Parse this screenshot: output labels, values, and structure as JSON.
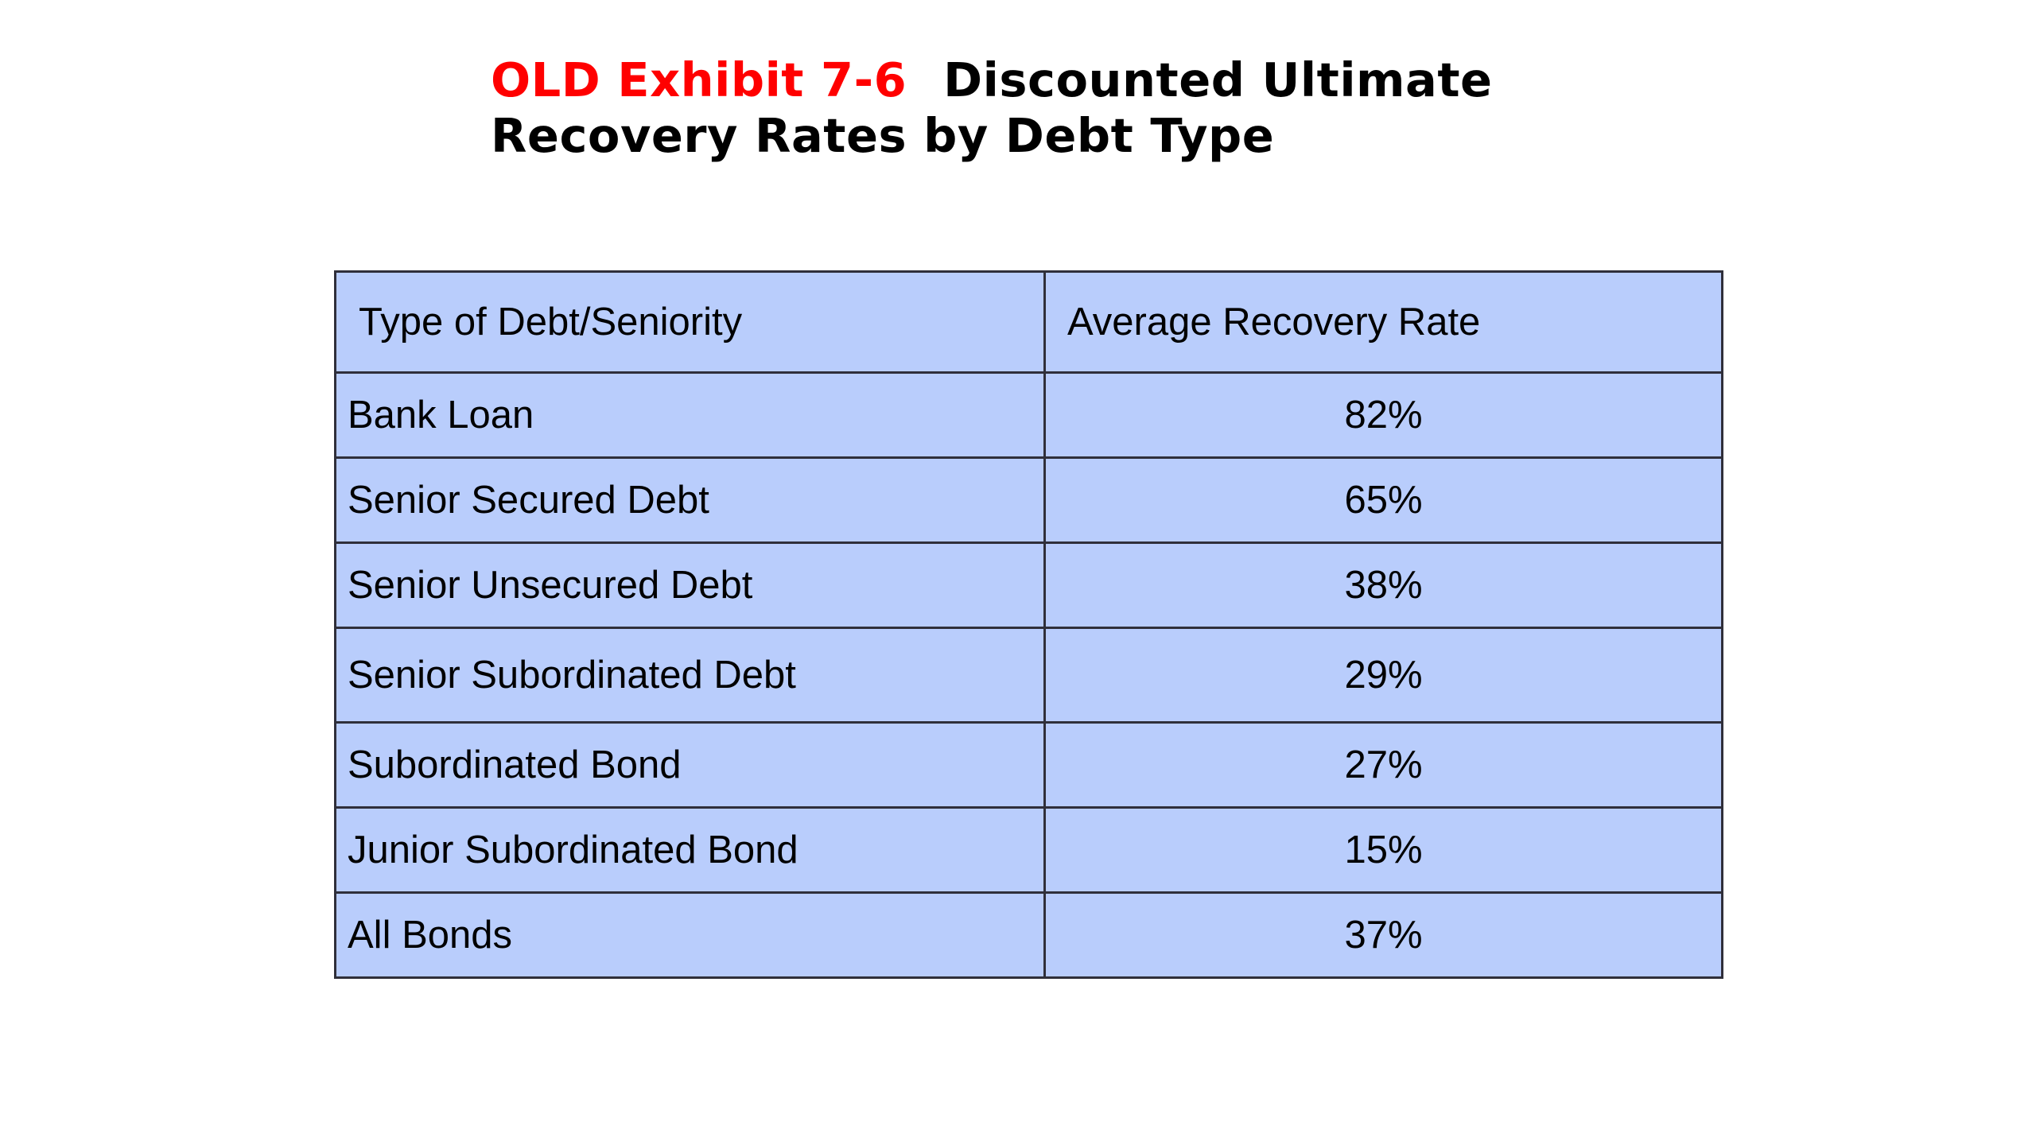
{
  "title": {
    "prefix": "OLD Exhibit 7-6",
    "line1_rest": "Discounted Ultimate",
    "line2": "Recovery Rates by Debt Type"
  },
  "colors": {
    "title_prefix": "#ff0000",
    "table_fill": "#b9cdfc",
    "table_border": "#2f2f3a"
  },
  "table": {
    "headers": [
      "Type of Debt/Seniority",
      "Average Recovery Rate"
    ],
    "rows": [
      {
        "type": "Bank Loan",
        "rate": "82%"
      },
      {
        "type": "Senior Secured Debt",
        "rate": "65%"
      },
      {
        "type": "Senior Unsecured Debt",
        "rate": "38%"
      },
      {
        "type": "Senior Subordinated Debt",
        "rate": "29%"
      },
      {
        "type": "Subordinated Bond",
        "rate": "27%"
      },
      {
        "type": "Junior Subordinated Bond",
        "rate": "15%"
      },
      {
        "type": "All Bonds",
        "rate": "37%"
      }
    ]
  }
}
